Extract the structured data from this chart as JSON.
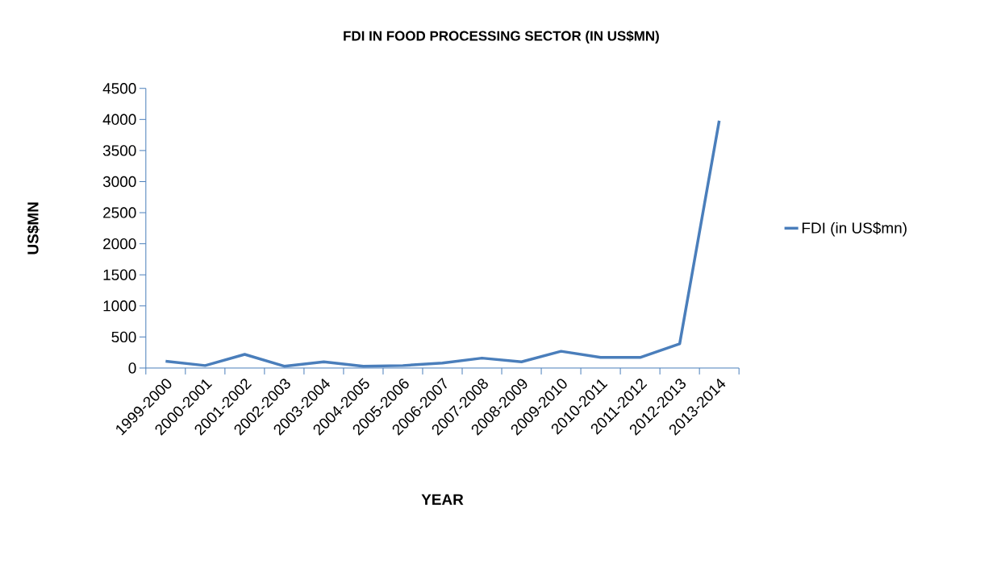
{
  "chart_data": {
    "type": "line",
    "title": "FDI IN FOOD PROCESSING SECTOR (IN US$MN)",
    "xlabel": "YEAR",
    "ylabel": "US$MN",
    "categories": [
      "1999-2000",
      "2000-2001",
      "2001-2002",
      "2002-2003",
      "2003-2004",
      "2004-2005",
      "2005-2006",
      "2006-2007",
      "2007-2008",
      "2008-2009",
      "2009-2010",
      "2010-2011",
      "2011-2012",
      "2012-2013",
      "2013-2014"
    ],
    "series": [
      {
        "name": "FDI (in US$mn)",
        "color": "#4a7ebb",
        "values": [
          110,
          40,
          220,
          30,
          100,
          30,
          40,
          80,
          160,
          100,
          270,
          170,
          170,
          390,
          3980
        ]
      }
    ],
    "ylim": [
      0,
      4500
    ],
    "yticks": [
      0,
      500,
      1000,
      1500,
      2000,
      2500,
      3000,
      3500,
      4000,
      4500
    ],
    "grid": false,
    "legend": "right",
    "marker": "none",
    "line_style": "solid"
  }
}
